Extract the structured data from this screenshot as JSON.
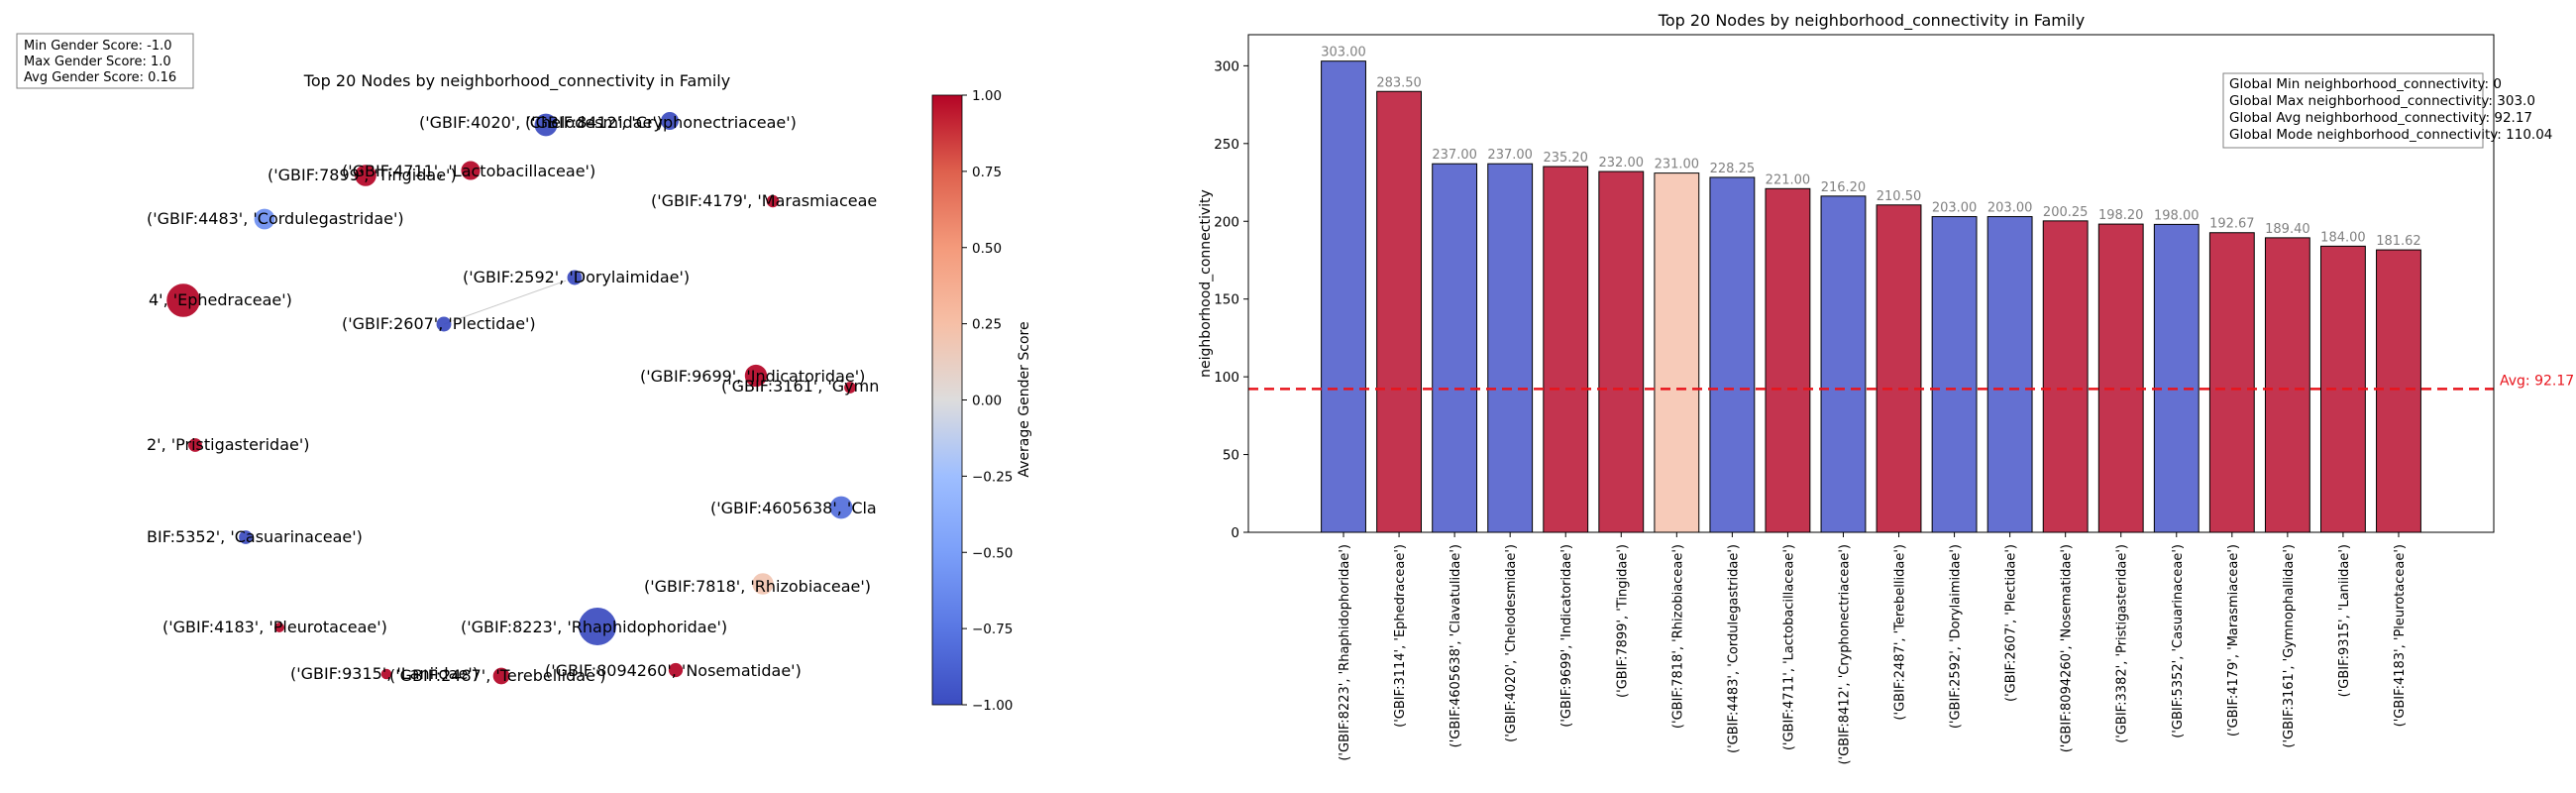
{
  "chart_data": [
    {
      "type": "scatter",
      "title": "Top 20 Nodes by neighborhood_connectivity in Family",
      "stats_box": [
        "Min Gender Score: -1.0",
        "Max Gender Score: 1.0",
        "Avg Gender Score: 0.16"
      ],
      "colorbar": {
        "label": "Average Gender Score",
        "range": [
          -1.0,
          1.0
        ],
        "ticks": [
          "1.00",
          "0.75",
          "0.50",
          "0.25",
          "0.00",
          "−0.25",
          "−0.50",
          "−0.75",
          "−1.00"
        ]
      },
      "nodes": [
        {
          "id": "GBIF:8412",
          "label": "('GBIF:8412', 'Cryphonectriaceae')",
          "score": -1.0
        },
        {
          "id": "GBIF:4020",
          "label": "('GBIF:4020', 'Chelodesmidae')",
          "score": -1.0
        },
        {
          "id": "GBIF:4711",
          "label": "('GBIF:4711', 'Lactobacillaceae')",
          "score": 1.0
        },
        {
          "id": "GBIF:7899",
          "label": "('GBIF:7899', 'Tingidae')",
          "score": 1.0
        },
        {
          "id": "GBIF:4483",
          "label": "('GBIF:4483', 'Cordulegastridae')",
          "score": -0.6
        },
        {
          "id": "GBIF:4179",
          "label": "('GBIF:4179', 'Marasmiaceae",
          "score": 1.0
        },
        {
          "id": "GBIF:2592",
          "label": "('GBIF:2592', 'Dorylaimidae')",
          "score": -1.0
        },
        {
          "id": "GBIF:3114",
          "label": "4', 'Ephedraceae')",
          "score": 1.0
        },
        {
          "id": "GBIF:2607",
          "label": "('GBIF:2607', 'Plectidae')",
          "score": -1.0
        },
        {
          "id": "GBIF:9699",
          "label": "('GBIF:9699', 'Indicatoridae')",
          "score": 1.0
        },
        {
          "id": "GBIF:3161",
          "label": "('GBIF:3161', 'Gymn",
          "score": 1.0
        },
        {
          "id": "GBIF:3382",
          "label": "2', 'Pristigasteridae')",
          "score": 1.0
        },
        {
          "id": "GBIF:4605638",
          "label": "('GBIF:4605638', 'Cla",
          "score": -0.8
        },
        {
          "id": "GBIF:5352",
          "label": "BIF:5352', 'Casuarinaceae')",
          "score": -1.0
        },
        {
          "id": "GBIF:7818",
          "label": "('GBIF:7818', 'Rhizobiaceae')",
          "score": 0.2
        },
        {
          "id": "GBIF:4183",
          "label": "('GBIF:4183', 'Pleurotaceae')",
          "score": 1.0
        },
        {
          "id": "GBIF:8223",
          "label": "('GBIF:8223', 'Rhaphidophoridae')",
          "score": -1.0
        },
        {
          "id": "GBIF:9315",
          "label": "('GBIF:9315', 'Laniidae')",
          "score": 1.0
        },
        {
          "id": "GBIF:2487",
          "label": "('GBIF:2487', 'Terebellidae')",
          "score": 1.0
        },
        {
          "id": "GBIF:8094260",
          "label": "('GBIF:8094260', 'Nosematidae')",
          "score": 1.0
        }
      ],
      "edges": [
        [
          "GBIF:2592",
          "GBIF:2607"
        ]
      ]
    },
    {
      "type": "bar",
      "title": "Top 20 Nodes by neighborhood_connectivity in Family",
      "xlabel": "",
      "ylabel": "neighborhood_connectivity",
      "ylim": [
        0,
        320
      ],
      "yticks": [
        0,
        50,
        100,
        150,
        200,
        250,
        300
      ],
      "categories": [
        "('GBIF:8223', 'Rhaphidophoridae')",
        "('GBIF:3114', 'Ephedraceae')",
        "('GBIF:4605638', 'Clavatulidae')",
        "('GBIF:4020', 'Chelodesmidae')",
        "('GBIF:9699', 'Indicatoridae')",
        "('GBIF:7899', 'Tingidae')",
        "('GBIF:7818', 'Rhizobiaceae')",
        "('GBIF:4483', 'Cordulegastridae')",
        "('GBIF:4711', 'Lactobacillaceae')",
        "('GBIF:8412', 'Cryphonectriaceae')",
        "('GBIF:2487', 'Terebellidae')",
        "('GBIF:2592', 'Dorylaimidae')",
        "('GBIF:2607', 'Plectidae')",
        "('GBIF:8094260', 'Nosematidae')",
        "('GBIF:3382', 'Pristigasteridae')",
        "('GBIF:5352', 'Casuarinaceae')",
        "('GBIF:4179', 'Marasmiaceae')",
        "('GBIF:3161', 'Gymnophallidae')",
        "('GBIF:9315', 'Laniidae')",
        "('GBIF:4183', 'Pleurotaceae')"
      ],
      "values": [
        303.0,
        283.5,
        237.0,
        237.0,
        235.2,
        232.0,
        231.0,
        228.25,
        221.0,
        216.2,
        210.5,
        203.0,
        203.0,
        200.25,
        198.2,
        198.0,
        192.67,
        189.4,
        184.0,
        181.62
      ],
      "value_labels": [
        "303.00",
        "283.50",
        "237.00",
        "237.00",
        "235.20",
        "232.00",
        "231.00",
        "228.25",
        "221.00",
        "216.20",
        "210.50",
        "203.00",
        "203.00",
        "200.25",
        "198.20",
        "198.00",
        "192.67",
        "189.40",
        "184.00",
        "181.62"
      ],
      "bar_colors": [
        "#6470d1",
        "#c3344f",
        "#6470d1",
        "#6470d1",
        "#c3344f",
        "#c3344f",
        "#f7cbb9",
        "#6470d1",
        "#c3344f",
        "#6470d1",
        "#c3344f",
        "#6470d1",
        "#6470d1",
        "#c3344f",
        "#c3344f",
        "#6470d1",
        "#c3344f",
        "#c3344f",
        "#c3344f",
        "#c3344f"
      ],
      "avg_line": {
        "value": 92.17,
        "label": "Avg: 92.17",
        "color": "#e8141c"
      },
      "stats_box": [
        "Global Min neighborhood_connectivity: 0",
        "Global Max neighborhood_connectivity: 303.0",
        "Global Avg neighborhood_connectivity: 92.17",
        "Global Mode neighborhood_connectivity: 110.04"
      ]
    }
  ]
}
